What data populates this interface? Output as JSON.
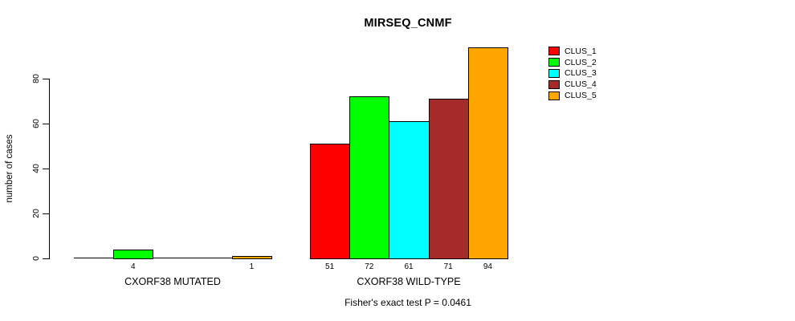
{
  "chart_data": {
    "type": "bar",
    "title": "MIRSEQ_CNMF",
    "ylabel": "number of cases",
    "xlabel": "",
    "ylim": [
      0,
      94
    ],
    "yticks": [
      0,
      20,
      40,
      60,
      80
    ],
    "grid": false,
    "legend_position": "right-inside-top",
    "categories": [
      "CXORF38 MUTATED",
      "CXORF38 WILD-TYPE"
    ],
    "series": [
      {
        "name": "CLUS_1",
        "color": "#ff0000",
        "values": [
          0,
          51
        ]
      },
      {
        "name": "CLUS_2",
        "color": "#00ff00",
        "values": [
          4,
          72
        ]
      },
      {
        "name": "CLUS_3",
        "color": "#00ffff",
        "values": [
          0,
          61
        ]
      },
      {
        "name": "CLUS_4",
        "color": "#a52a2a",
        "values": [
          0,
          71
        ]
      },
      {
        "name": "CLUS_5",
        "color": "#ffa500",
        "values": [
          1,
          94
        ]
      }
    ],
    "bar_value_labels": [
      [
        "",
        "4",
        "",
        "",
        "1"
      ],
      [
        "51",
        "72",
        "61",
        "71",
        "94"
      ]
    ],
    "annotation": "Fisher's exact test P = 0.0461"
  }
}
